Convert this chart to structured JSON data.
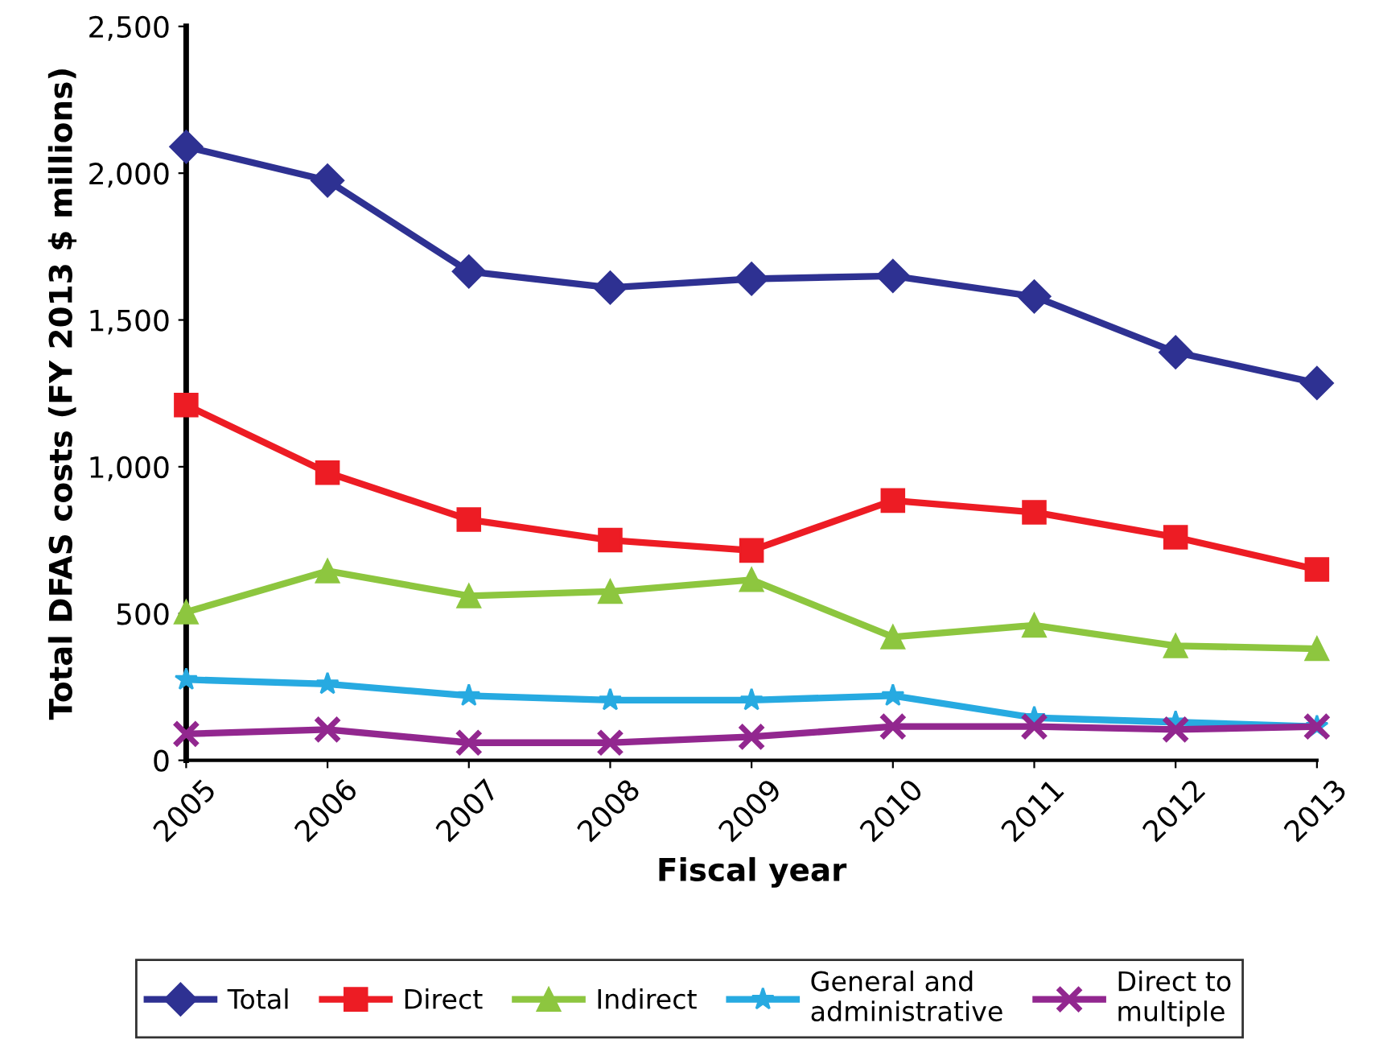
{
  "chart_data": {
    "type": "line",
    "xlabel": "Fiscal year",
    "ylabel": "Total DFAS costs (FY 2013 $ millions)",
    "categories": [
      "2005",
      "2006",
      "2007",
      "2008",
      "2009",
      "2010",
      "2011",
      "2012",
      "2013"
    ],
    "series": [
      {
        "name": "Total",
        "color": "#2e3192",
        "marker": "diamond",
        "values": [
          2090,
          1975,
          1665,
          1610,
          1640,
          1650,
          1580,
          1390,
          1285
        ]
      },
      {
        "name": "Direct",
        "color": "#ed1c24",
        "marker": "square",
        "values": [
          1210,
          980,
          820,
          750,
          715,
          885,
          845,
          760,
          650
        ]
      },
      {
        "name": "Indirect",
        "color": "#8dc63f",
        "marker": "triangle",
        "values": [
          505,
          645,
          560,
          575,
          615,
          420,
          460,
          390,
          380
        ]
      },
      {
        "name": "General and\nadministrative",
        "color": "#27aae1",
        "marker": "star",
        "values": [
          275,
          260,
          220,
          205,
          205,
          220,
          145,
          130,
          115
        ]
      },
      {
        "name": "Direct to\nmultiple",
        "color": "#92278f",
        "marker": "cross",
        "values": [
          90,
          105,
          60,
          60,
          80,
          115,
          115,
          105,
          115
        ]
      }
    ],
    "ylim": [
      0,
      2500
    ],
    "yticks": [
      {
        "value": 0,
        "label": "0"
      },
      {
        "value": 500,
        "label": "500"
      },
      {
        "value": 1000,
        "label": "1,000"
      },
      {
        "value": 1500,
        "label": "1,500"
      },
      {
        "value": 2000,
        "label": "2,000"
      },
      {
        "value": 2500,
        "label": "2,500"
      }
    ],
    "grid": false,
    "legend": "bottom",
    "line_style": "solid"
  }
}
